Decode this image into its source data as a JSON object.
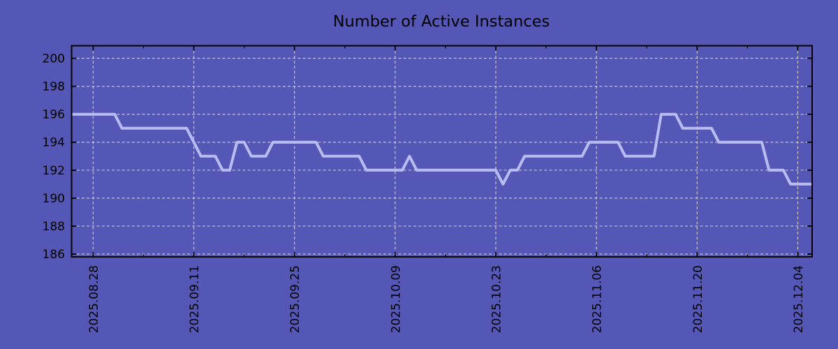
{
  "chart_data": {
    "type": "line",
    "title": "Number of Active Instances",
    "xlabel": "",
    "ylabel": "",
    "grid": true,
    "legend_position": "none",
    "x_start_date": "2025.08.25",
    "x_step_days": 1,
    "x_tick_labels": [
      "2025.08.28",
      "2025.09.11",
      "2025.09.25",
      "2025.10.09",
      "2025.10.23",
      "2025.11.06",
      "2025.11.20",
      "2025.12.04"
    ],
    "x_tick_day_offsets": [
      3,
      17,
      31,
      45,
      59,
      73,
      87,
      101
    ],
    "x_minor_tick_day_offsets": [
      10,
      24,
      38,
      52,
      66,
      80,
      94
    ],
    "y_tick_labels": [
      "186",
      "188",
      "190",
      "192",
      "194",
      "196",
      "198",
      "200"
    ],
    "yticks": [
      186,
      188,
      190,
      192,
      194,
      196,
      198,
      200
    ],
    "ylim": [
      185.8,
      200.9
    ],
    "values": [
      196,
      196,
      196,
      196,
      196,
      196,
      196,
      195,
      195,
      195,
      195,
      195,
      195,
      195,
      195,
      195,
      195,
      194,
      193,
      193,
      193,
      192,
      192,
      194,
      194,
      193,
      193,
      193,
      194,
      194,
      194,
      194,
      194,
      194,
      194,
      193,
      193,
      193,
      193,
      193,
      193,
      192,
      192,
      192,
      192,
      192,
      192,
      193,
      192,
      192,
      192,
      192,
      192,
      192,
      192,
      192,
      192,
      192,
      192,
      192,
      191,
      192,
      192,
      193,
      193,
      193,
      193,
      193,
      193,
      193,
      193,
      193,
      194,
      194,
      194,
      194,
      194,
      193,
      193,
      193,
      193,
      193,
      196,
      196,
      196,
      195,
      195,
      195,
      195,
      195,
      194,
      194,
      194,
      194,
      194,
      194,
      194,
      192,
      192,
      192,
      191,
      191,
      191,
      191
    ]
  },
  "colors": {
    "background": "#5457b5",
    "line": "#b8bcf1",
    "grid": "#c9c9c0",
    "axis": "#000000",
    "text": "#000000"
  }
}
